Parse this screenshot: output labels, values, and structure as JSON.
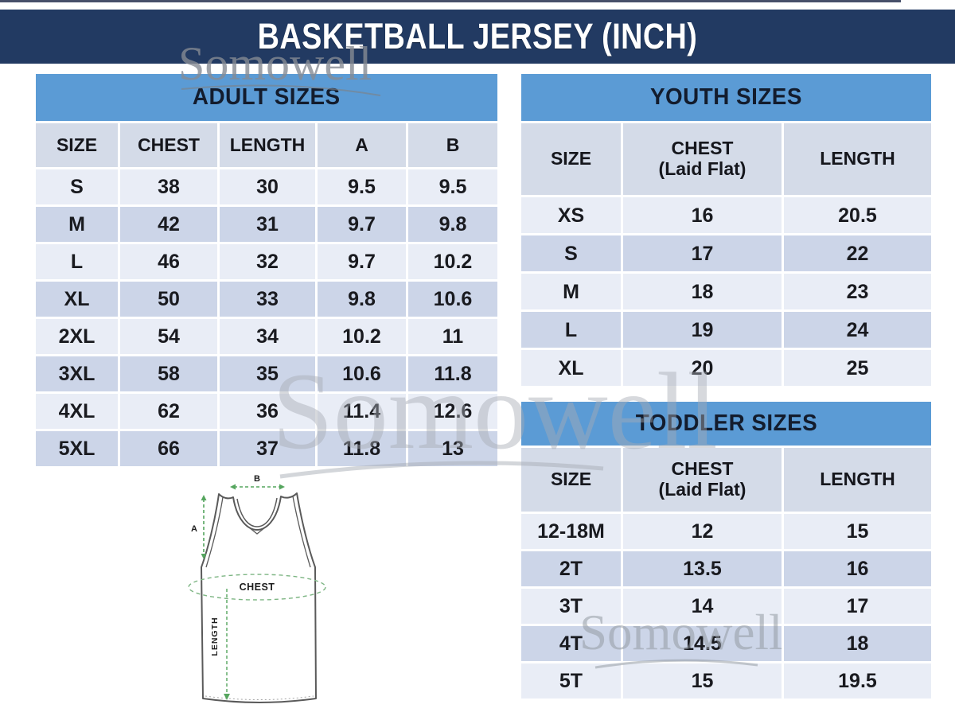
{
  "header": {
    "title": "BASKETBALL JERSEY (INCH)"
  },
  "watermark": {
    "text": "Somowell"
  },
  "adult_table": {
    "title": "ADULT SIZES",
    "columns": [
      "SIZE",
      "CHEST",
      "LENGTH",
      "A",
      "B"
    ],
    "rows": [
      [
        "S",
        "38",
        "30",
        "9.5",
        "9.5"
      ],
      [
        "M",
        "42",
        "31",
        "9.7",
        "9.8"
      ],
      [
        "L",
        "46",
        "32",
        "9.7",
        "10.2"
      ],
      [
        "XL",
        "50",
        "33",
        "9.8",
        "10.6"
      ],
      [
        "2XL",
        "54",
        "34",
        "10.2",
        "11"
      ],
      [
        "3XL",
        "58",
        "35",
        "10.6",
        "11.8"
      ],
      [
        "4XL",
        "62",
        "36",
        "11.4",
        "12.6"
      ],
      [
        "5XL",
        "66",
        "37",
        "11.8",
        "13"
      ]
    ]
  },
  "youth_table": {
    "title": "YOUTH SIZES",
    "columns": [
      "SIZE",
      "CHEST\n(Laid Flat)",
      "LENGTH"
    ],
    "rows": [
      [
        "XS",
        "16",
        "20.5"
      ],
      [
        "S",
        "17",
        "22"
      ],
      [
        "M",
        "18",
        "23"
      ],
      [
        "L",
        "19",
        "24"
      ],
      [
        "XL",
        "20",
        "25"
      ]
    ]
  },
  "toddler_table": {
    "title": "TODDLER SIZES",
    "columns": [
      "SIZE",
      "CHEST\n(Laid Flat)",
      "LENGTH"
    ],
    "rows": [
      [
        "12-18M",
        "12",
        "15"
      ],
      [
        "2T",
        "13.5",
        "16"
      ],
      [
        "3T",
        "14",
        "17"
      ],
      [
        "4T",
        "14.5",
        "18"
      ],
      [
        "5T",
        "15",
        "19.5"
      ]
    ]
  },
  "diagram": {
    "label_b": "B",
    "label_a": "A",
    "label_chest": "CHEST",
    "label_length": "LENGTH"
  },
  "colors": {
    "banner_navy": "#223a62",
    "section_blue": "#5b9bd5",
    "header_row": "#d4dbe8",
    "row_light": "#e9edf6",
    "row_dark": "#ccd5e8",
    "measure_green": "#55a55e",
    "watermark_gray": "#9aa0a8"
  }
}
